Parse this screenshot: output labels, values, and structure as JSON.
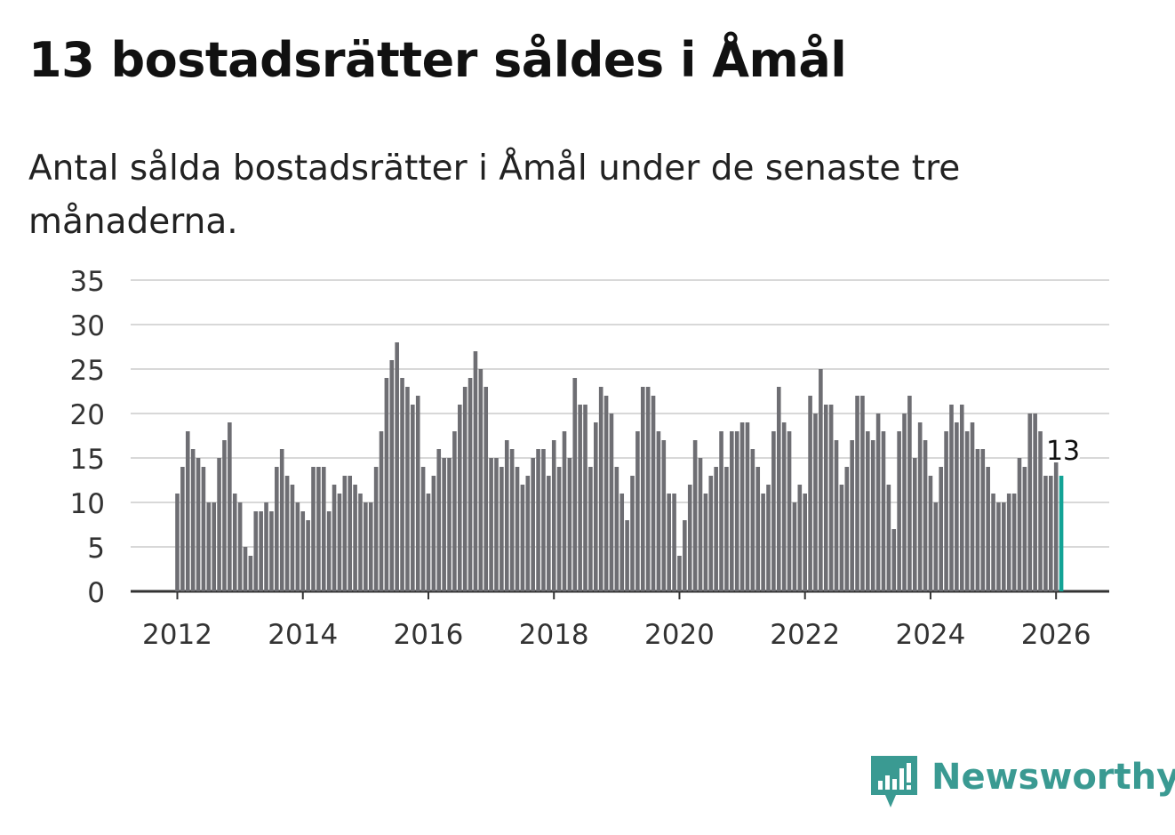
{
  "title": "13 bostadsrätter såldes i Åmål",
  "subtitle": "Antal sålda bostadsrätter i Åmål under de senaste tre månaderna.",
  "brand": {
    "name": "Newsworthy",
    "color": "#3a9a92",
    "icon": "newsworthy-logo-icon"
  },
  "chart_data": {
    "type": "bar",
    "title": "13 bostadsrätter såldes i Åmål",
    "xlabel": "",
    "ylabel": "",
    "ylim": [
      0,
      35
    ],
    "yticks": [
      0,
      5,
      10,
      15,
      20,
      25,
      30,
      35
    ],
    "xticks": [
      "2012",
      "2014",
      "2016",
      "2018",
      "2020",
      "2022",
      "2024",
      "2026"
    ],
    "start": "2012-01",
    "grid": true,
    "bar_color": "#6e6e73",
    "highlight_color": "#13a396",
    "highlight_label": "13",
    "values": [
      11,
      14,
      18,
      16,
      15,
      14,
      10,
      10,
      15,
      17,
      19,
      11,
      10,
      5,
      4,
      9,
      9,
      10,
      9,
      14,
      16,
      13,
      12,
      10,
      9,
      8,
      14,
      14,
      14,
      9,
      12,
      11,
      13,
      13,
      12,
      11,
      10,
      10,
      14,
      18,
      24,
      26,
      28,
      24,
      23,
      21,
      22,
      14,
      11,
      13,
      16,
      15,
      15,
      18,
      21,
      23,
      24,
      27,
      25,
      23,
      15,
      15,
      14,
      17,
      16,
      14,
      12,
      13,
      15,
      16,
      16,
      13,
      17,
      14,
      18,
      15,
      24,
      21,
      21,
      14,
      19,
      23,
      22,
      20,
      14,
      11,
      8,
      13,
      18,
      23,
      23,
      22,
      18,
      17,
      11,
      11,
      4,
      8,
      12,
      17,
      15,
      11,
      13,
      14,
      18,
      14,
      18,
      18,
      19,
      19,
      16,
      14,
      11,
      12,
      18,
      23,
      19,
      18,
      10,
      12,
      11,
      22,
      20,
      25,
      21,
      21,
      17,
      12,
      14,
      17,
      22,
      22,
      18,
      17,
      20,
      18,
      12,
      7,
      18,
      20,
      22,
      15,
      19,
      17,
      13,
      10,
      14,
      18,
      21,
      19,
      21,
      18,
      19,
      16,
      16,
      14,
      11,
      10,
      10,
      11,
      11,
      15,
      14,
      20,
      20,
      18,
      13,
      13,
      14.5,
      13
    ]
  }
}
